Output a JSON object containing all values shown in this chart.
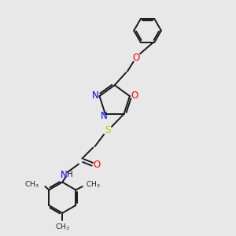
{
  "background_color": "#e8e8e8",
  "bond_color": "#1a1a1a",
  "N_color": "#0000ff",
  "O_color": "#ff0000",
  "S_color": "#cccc00",
  "figsize": [
    3.0,
    3.0
  ],
  "dpi": 100,
  "xlim": [
    0,
    10
  ],
  "ylim": [
    0,
    10
  ]
}
